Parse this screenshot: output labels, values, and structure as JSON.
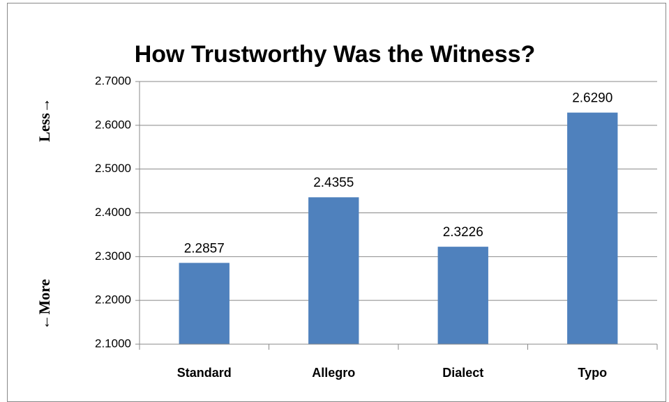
{
  "chart_data": {
    "type": "bar",
    "title": "How Trustworthy Was the Witness?",
    "categories": [
      "Standard",
      "Allegro",
      "Dialect",
      "Typo"
    ],
    "values": [
      2.2857,
      2.4355,
      2.3226,
      2.629
    ],
    "value_labels": [
      "2.2857",
      "2.4355",
      "2.3226",
      "2.6290"
    ],
    "color": "#4f81bd",
    "ylim": [
      2.1,
      2.7
    ],
    "yticks": [
      {
        "value": 2.1,
        "label": "2.1000"
      },
      {
        "value": 2.2,
        "label": "2.2000"
      },
      {
        "value": 2.3,
        "label": "2.3000"
      },
      {
        "value": 2.4,
        "label": "2.4000"
      },
      {
        "value": 2.5,
        "label": "2.5000"
      },
      {
        "value": 2.6,
        "label": "2.6000"
      },
      {
        "value": 2.7,
        "label": "2.7000"
      }
    ],
    "grid": true,
    "annotations": [
      "Less→",
      "←More"
    ]
  }
}
